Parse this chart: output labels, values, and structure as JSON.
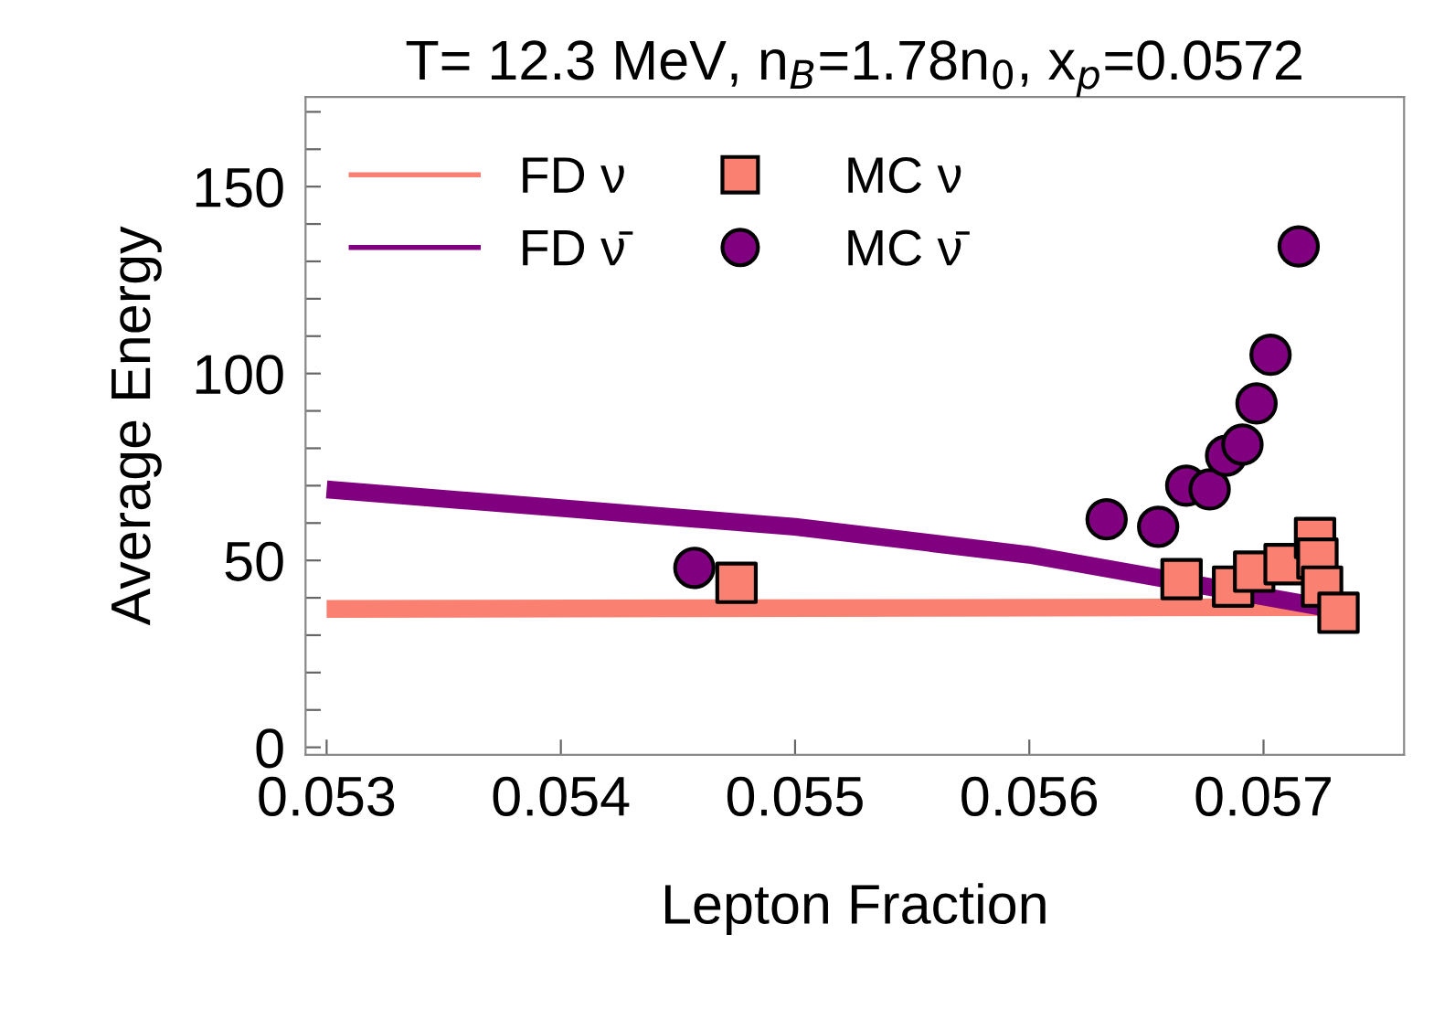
{
  "chart_data": {
    "type": "line",
    "title": "T= 12.3 MeV, n$_{B}$=1.78n$_{0}$, x$_{p}$=0.0572",
    "xlabel": "Lepton Fraction",
    "ylabel": "Average Energy",
    "xlim": [
      0.05291,
      0.0576
    ],
    "xticks": [
      0.053,
      0.054,
      0.055,
      0.056,
      0.057
    ],
    "ylim": [
      -2,
      174
    ],
    "yticks": [
      0,
      {
        "value": 10,
        "label": null
      },
      {
        "value": 20,
        "label": null
      },
      {
        "value": 30,
        "label": null
      },
      {
        "value": 40,
        "label": null
      },
      50,
      {
        "value": 60,
        "label": null
      },
      {
        "value": 70,
        "label": null
      },
      {
        "value": 80,
        "label": null
      },
      {
        "value": 90,
        "label": null
      },
      100,
      {
        "value": 110,
        "label": null
      },
      {
        "value": 120,
        "label": null
      },
      {
        "value": 130,
        "label": null
      },
      {
        "value": 140,
        "label": null
      },
      150,
      {
        "value": 160,
        "label": null
      },
      {
        "value": 170,
        "label": null
      }
    ],
    "grid": false,
    "legend": "top left",
    "series": [
      {
        "name": "FD ν",
        "color": "#fa8072",
        "marker": "none",
        "x": [
          0.053,
          0.0573
        ],
        "values": [
          37,
          37.5
        ]
      },
      {
        "name": "FD ν̄",
        "color": "#800080",
        "marker": "none",
        "x": [
          0.053,
          0.054,
          0.055,
          0.056,
          0.0573
        ],
        "values": [
          69,
          64,
          59,
          51.5,
          37
        ]
      },
      {
        "name": "MC ν",
        "type": "scatter",
        "color": "#fa8072",
        "marker": "square",
        "x": [
          0.05475,
          0.05665,
          0.05687,
          0.05696,
          0.05709,
          0.05722,
          0.05723,
          0.05725,
          0.05732
        ],
        "values": [
          44,
          45,
          43,
          47,
          49,
          56,
          50.5,
          43,
          36
        ]
      },
      {
        "name": "MC ν̄",
        "type": "scatter",
        "color": "#800080",
        "marker": "circle",
        "x": [
          0.05457,
          0.05633,
          0.05655,
          0.05667,
          0.05677,
          0.05684,
          0.05691,
          0.05697,
          0.05703,
          0.05715
        ],
        "values": [
          48,
          61,
          59,
          70,
          69,
          78,
          81,
          92,
          105,
          134
        ]
      }
    ]
  }
}
